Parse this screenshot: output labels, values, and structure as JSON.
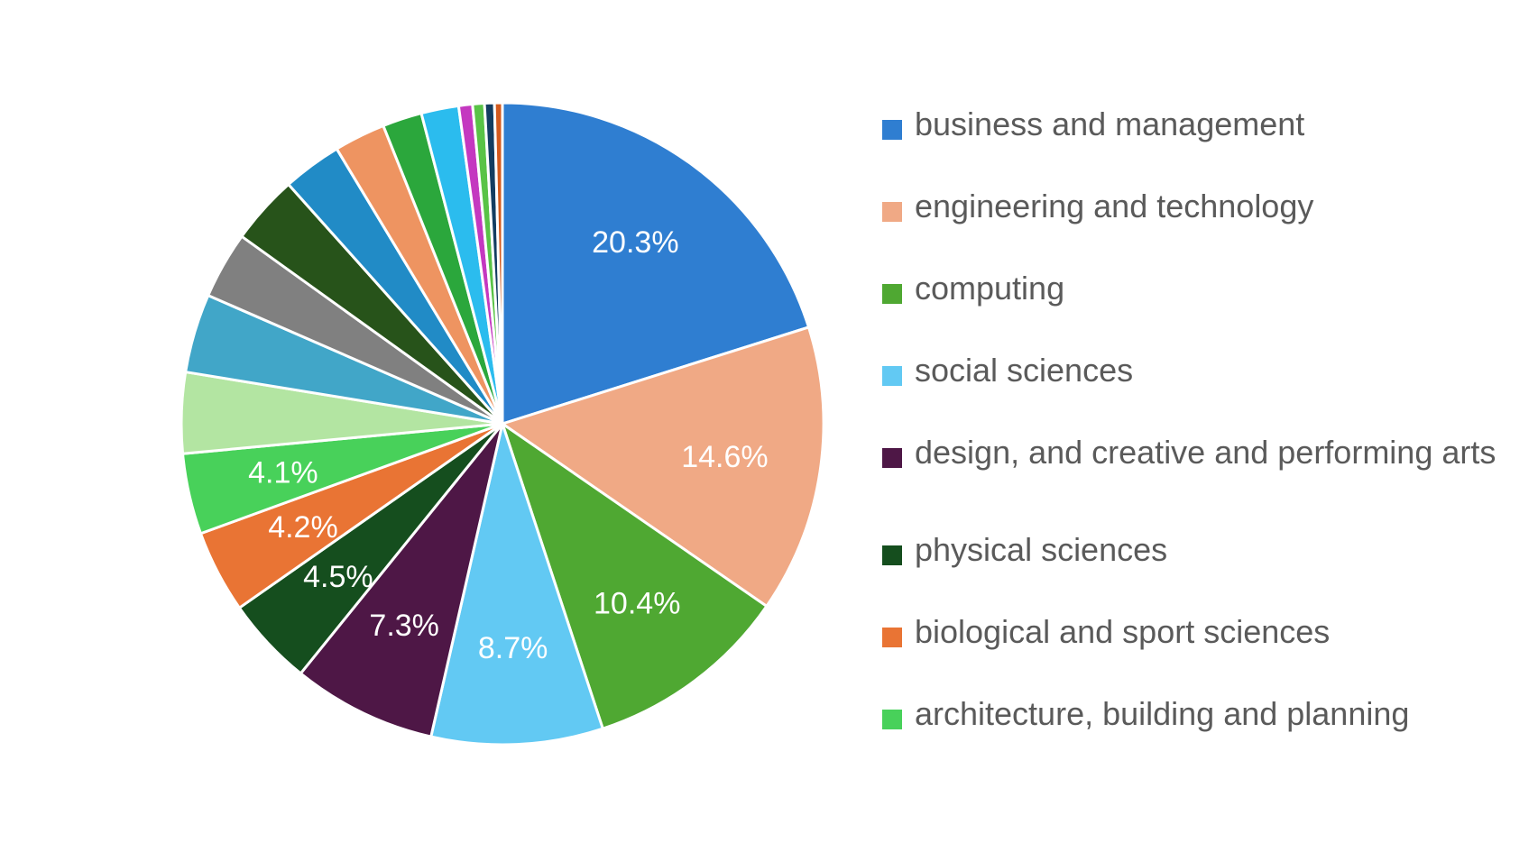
{
  "chart_data": {
    "type": "pie",
    "title": "",
    "start_angle_deg": 0,
    "direction": "clockwise",
    "legend_position": "right",
    "slices": [
      {
        "name": "business and management",
        "value": 20.3,
        "color": "#2F7ED1",
        "label": "20.3%",
        "in_legend": true
      },
      {
        "name": "engineering and technology",
        "value": 14.6,
        "color": "#F0A985",
        "label": "14.6%",
        "in_legend": true
      },
      {
        "name": "computing",
        "value": 10.4,
        "color": "#4FA832",
        "label": "10.4%",
        "in_legend": true
      },
      {
        "name": "social sciences",
        "value": 8.7,
        "color": "#62C9F3",
        "label": "8.7%",
        "in_legend": true
      },
      {
        "name": "design, and creative and performing arts",
        "value": 7.3,
        "color": "#4E1746",
        "label": "7.3%",
        "in_legend": true
      },
      {
        "name": "physical sciences",
        "value": 4.5,
        "color": "#154E1E",
        "label": "4.5%",
        "in_legend": true
      },
      {
        "name": "biological and sport sciences",
        "value": 4.2,
        "color": "#E97434",
        "label": "4.2%",
        "in_legend": true
      },
      {
        "name": "architecture, building and planning",
        "value": 4.1,
        "color": "#48D15A",
        "label": "4.1%",
        "in_legend": true
      },
      {
        "name": "",
        "value": 4.1,
        "color": "#B3E5A2",
        "label": "",
        "in_legend": false
      },
      {
        "name": "",
        "value": 4.0,
        "color": "#41A6C8",
        "label": "",
        "in_legend": false
      },
      {
        "name": "",
        "value": 3.4,
        "color": "#808080",
        "label": "",
        "in_legend": false
      },
      {
        "name": "",
        "value": 3.5,
        "color": "#27531A",
        "label": "",
        "in_legend": false
      },
      {
        "name": "",
        "value": 3.0,
        "color": "#218BC6",
        "label": "",
        "in_legend": false
      },
      {
        "name": "",
        "value": 2.6,
        "color": "#EE9461",
        "label": "",
        "in_legend": false
      },
      {
        "name": "",
        "value": 2.0,
        "color": "#2BA73C",
        "label": "",
        "in_legend": false
      },
      {
        "name": "",
        "value": 1.9,
        "color": "#2BBCEE",
        "label": "",
        "in_legend": false
      },
      {
        "name": "",
        "value": 0.7,
        "color": "#C438C0",
        "label": "",
        "in_legend": false
      },
      {
        "name": "",
        "value": 0.6,
        "color": "#59C346",
        "label": "",
        "in_legend": false
      },
      {
        "name": "",
        "value": 0.5,
        "color": "#133D61",
        "label": "",
        "in_legend": false
      },
      {
        "name": "",
        "value": 0.4,
        "color": "#D35A1E",
        "label": "",
        "in_legend": false
      }
    ]
  }
}
